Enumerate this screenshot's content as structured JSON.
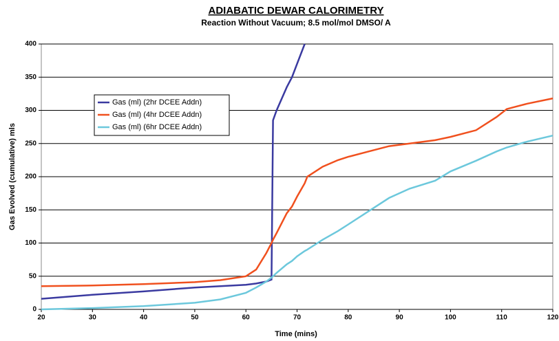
{
  "chart_data": {
    "type": "line",
    "title": "ADIABATIC DEWAR CALORIMETRY",
    "subtitle": "Reaction Without Vacuum; 8.5 mol/mol DMSO/ A",
    "x_label": "Time (mins)",
    "y_label": "Gas Evolved (cumulative) mls",
    "x": [
      20,
      30,
      40,
      50,
      55,
      60,
      62,
      64,
      65,
      65.3,
      66,
      68,
      69,
      70,
      71.5,
      72,
      75,
      78,
      80,
      84,
      88,
      92,
      97,
      100,
      105,
      109,
      111,
      115,
      120
    ],
    "series": [
      {
        "name": "Gas (ml) (2hr DCEE Addn)",
        "color": "#3a3aa0",
        "values": [
          16,
          22,
          27,
          33,
          35,
          37,
          39,
          42,
          45,
          285,
          300,
          335,
          350,
          370,
          400,
          null,
          null,
          null,
          null,
          null,
          null,
          null,
          null,
          null,
          null,
          null,
          null,
          null,
          null
        ]
      },
      {
        "name": "Gas (ml) (4hr DCEE Addn)",
        "color": "#f0501e",
        "values": [
          35,
          36,
          38,
          41,
          44,
          50,
          60,
          85,
          100,
          105,
          115,
          145,
          155,
          170,
          190,
          200,
          215,
          225,
          230,
          238,
          246,
          250,
          255,
          260,
          270,
          290,
          302,
          310,
          318
        ]
      },
      {
        "name": "Gas (ml) (6hr DCEE Addn)",
        "color": "#6cc8dc",
        "values": [
          0,
          2,
          5,
          10,
          15,
          25,
          33,
          42,
          48,
          50,
          55,
          68,
          73,
          80,
          88,
          90,
          105,
          118,
          128,
          148,
          168,
          182,
          194,
          208,
          224,
          238,
          244,
          253,
          262
        ]
      }
    ],
    "xlim": [
      20,
      120
    ],
    "ylim": [
      0,
      400
    ],
    "xticks": [
      20,
      30,
      40,
      50,
      60,
      70,
      80,
      90,
      100,
      110,
      120
    ],
    "yticks": [
      0,
      50,
      100,
      150,
      200,
      250,
      300,
      350,
      400
    ],
    "grid": true,
    "legend_position": "upper left"
  }
}
